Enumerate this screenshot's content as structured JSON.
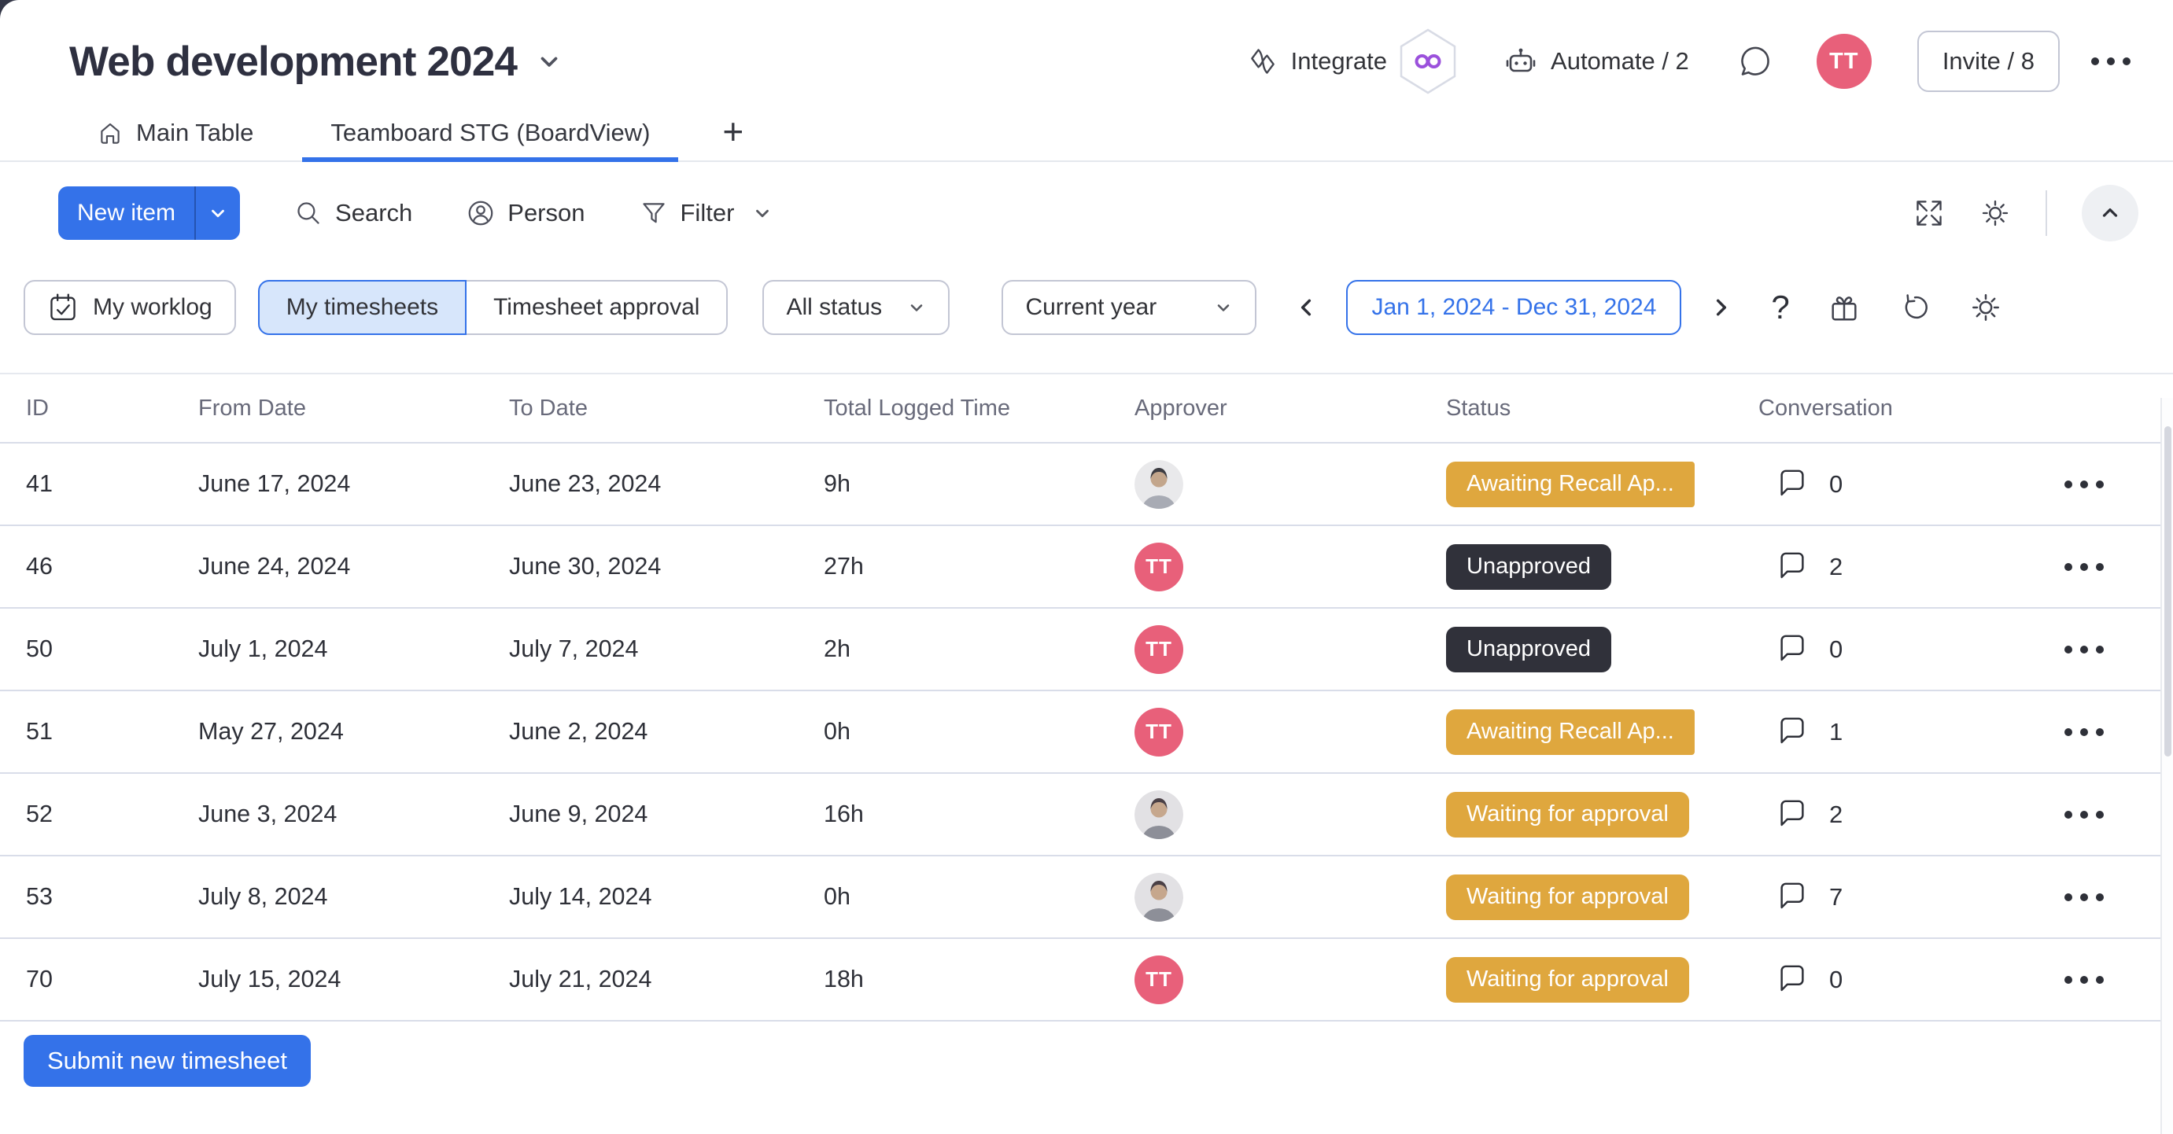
{
  "header": {
    "board_title": "Web development 2024",
    "integrate_label": "Integrate",
    "automate_label": "Automate / 2",
    "user_avatar_initials": "TT",
    "invite_label": "Invite / 8"
  },
  "tabs": {
    "main_table_label": "Main Table",
    "active_tab_label": "Teamboard STG (BoardView)",
    "add_tab_label": "+"
  },
  "toolbar": {
    "new_item_label": "New item",
    "search_label": "Search",
    "person_label": "Person",
    "filter_label": "Filter"
  },
  "filters": {
    "my_worklog_label": "My worklog",
    "my_timesheets_label": "My timesheets",
    "timesheet_approval_label": "Timesheet approval",
    "status_filter_value": "All status",
    "period_filter_value": "Current year",
    "date_range_value": "Jan 1, 2024 - Dec 31, 2024"
  },
  "table": {
    "columns": [
      "ID",
      "From Date",
      "To Date",
      "Total Logged Time",
      "Approver",
      "Status",
      "Conversation"
    ],
    "rows": [
      {
        "id": "41",
        "from_date": "June 17, 2024",
        "to_date": "June 23, 2024",
        "total_logged_time": "9h",
        "approver": {
          "type": "photo",
          "variant": "photo-1"
        },
        "status": {
          "label": "Awaiting Recall Ap...",
          "type": "gold",
          "truncated": true
        },
        "conversation_count": "0"
      },
      {
        "id": "46",
        "from_date": "June 24, 2024",
        "to_date": "June 30, 2024",
        "total_logged_time": "27h",
        "approver": {
          "type": "initials",
          "initials": "TT"
        },
        "status": {
          "label": "Unapproved",
          "type": "dark",
          "truncated": false
        },
        "conversation_count": "2"
      },
      {
        "id": "50",
        "from_date": "July 1, 2024",
        "to_date": "July 7, 2024",
        "total_logged_time": "2h",
        "approver": {
          "type": "initials",
          "initials": "TT"
        },
        "status": {
          "label": "Unapproved",
          "type": "dark",
          "truncated": false
        },
        "conversation_count": "0"
      },
      {
        "id": "51",
        "from_date": "May 27, 2024",
        "to_date": "June 2, 2024",
        "total_logged_time": "0h",
        "approver": {
          "type": "initials",
          "initials": "TT"
        },
        "status": {
          "label": "Awaiting Recall Ap...",
          "type": "gold",
          "truncated": true
        },
        "conversation_count": "1"
      },
      {
        "id": "52",
        "from_date": "June 3, 2024",
        "to_date": "June 9, 2024",
        "total_logged_time": "16h",
        "approver": {
          "type": "photo",
          "variant": "photo-2"
        },
        "status": {
          "label": "Waiting for approval",
          "type": "gold",
          "truncated": false
        },
        "conversation_count": "2"
      },
      {
        "id": "53",
        "from_date": "July 8, 2024",
        "to_date": "July 14, 2024",
        "total_logged_time": "0h",
        "approver": {
          "type": "photo",
          "variant": "photo-2"
        },
        "status": {
          "label": "Waiting for approval",
          "type": "gold",
          "truncated": false
        },
        "conversation_count": "7"
      },
      {
        "id": "70",
        "from_date": "July 15, 2024",
        "to_date": "July 21, 2024",
        "total_logged_time": "18h",
        "approver": {
          "type": "initials",
          "initials": "TT"
        },
        "status": {
          "label": "Waiting for approval",
          "type": "gold",
          "truncated": false
        },
        "conversation_count": "0"
      }
    ]
  },
  "footer": {
    "submit_label": "Submit new timesheet"
  },
  "colors": {
    "accent_blue": "#3472e9",
    "status_gold": "#dfa73e",
    "status_dark": "#30313a",
    "avatar_pink": "#e8607a",
    "integration_purple": "#9b51dc",
    "selected_filter_bg": "#d7e6fb"
  },
  "icons": {
    "title_chevron": "chevron-down",
    "integrate": "integration-arrows",
    "integrations_badge": "infinity-hexagon",
    "automate": "robot",
    "chat": "speech-bubble",
    "board_menu": "ellipsis",
    "main_table_tab": "home",
    "new_item_split": "chevron-down",
    "search": "magnifier",
    "person": "person-circle",
    "filter": "funnel",
    "board_expand": "expand-arrows",
    "board_settings": "gear",
    "collapse": "chevron-up",
    "my_worklog": "calendar-check",
    "prev_period": "chevron-left",
    "next_period": "chevron-right",
    "help": "question-mark",
    "whats_new": "gift",
    "refresh": "rotate-left",
    "widget_settings": "gear",
    "conversation": "comment-bubble",
    "row_menu": "ellipsis"
  }
}
